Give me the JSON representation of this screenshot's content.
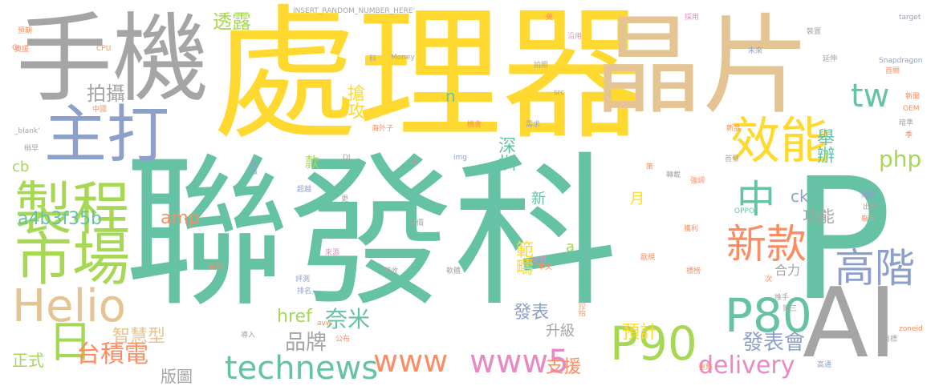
{
  "colors": {
    "yellow": "#ffd92f",
    "green": "#66c2a5",
    "gray": "#a5a5a5",
    "tan": "#e5c494",
    "blue": "#8da0cb",
    "lime": "#a6d854",
    "orange": "#fc8d62",
    "pink": "#e78ac3"
  },
  "words": [
    {
      "text": "聯發科",
      "color": "green"
    },
    {
      "text": "處理器",
      "color": "yellow"
    },
    {
      "text": "晶片",
      "color": "tan"
    },
    {
      "text": "手機",
      "color": "gray"
    },
    {
      "text": "P",
      "color": "green"
    },
    {
      "text": "AI",
      "color": "gray"
    },
    {
      "text": "主打",
      "color": "blue"
    },
    {
      "text": "製程",
      "color": "lime"
    },
    {
      "text": "市場",
      "color": "lime"
    },
    {
      "text": "效能",
      "color": "yellow"
    },
    {
      "text": "Helio",
      "color": "tan"
    },
    {
      "text": "P80",
      "color": "green"
    },
    {
      "text": "P90",
      "color": "lime"
    },
    {
      "text": "新款",
      "color": "orange"
    },
    {
      "text": "高階",
      "color": "blue"
    },
    {
      "text": "technews",
      "color": "green"
    },
    {
      "text": "www5",
      "color": "pink"
    },
    {
      "text": "www",
      "color": "orange"
    },
    {
      "text": "tw",
      "color": "green"
    },
    {
      "text": "中",
      "color": "green"
    },
    {
      "text": "日",
      "color": "lime"
    },
    {
      "text": "台積電",
      "color": "orange"
    },
    {
      "text": "delivery",
      "color": "pink"
    },
    {
      "text": "php",
      "color": "lime"
    },
    {
      "text": "發表會",
      "color": "blue"
    },
    {
      "text": "奈米",
      "color": "green"
    },
    {
      "text": "品牌",
      "color": "gray"
    },
    {
      "text": "amp",
      "color": "orange"
    },
    {
      "text": "a4b3f35b",
      "color": "green"
    },
    {
      "text": "拍攝",
      "color": "gray"
    },
    {
      "text": "透露",
      "color": "lime"
    },
    {
      "text": "搶攻",
      "color": "yellow"
    },
    {
      "text": "深圳",
      "color": "green"
    },
    {
      "text": "範疇",
      "color": "yellow"
    },
    {
      "text": "發表",
      "color": "blue"
    },
    {
      "text": "預計",
      "color": "yellow"
    },
    {
      "text": "升級",
      "color": "gray"
    },
    {
      "text": "支援",
      "color": "orange"
    },
    {
      "text": "智慧型",
      "color": "tan"
    },
    {
      "text": "正式",
      "color": "lime"
    },
    {
      "text": "版圖",
      "color": "gray"
    },
    {
      "text": "href",
      "color": "lime"
    },
    {
      "text": "舉辦",
      "color": "green"
    },
    {
      "text": "功能",
      "color": "gray"
    },
    {
      "text": "合力",
      "color": "gray"
    },
    {
      "text": "ck",
      "color": "blue"
    },
    {
      "text": "cb",
      "color": "lime"
    },
    {
      "text": "n",
      "color": "green"
    },
    {
      "text": "款",
      "color": "lime"
    },
    {
      "text": "新",
      "color": "green"
    },
    {
      "text": "月",
      "color": "yellow"
    },
    {
      "text": "a",
      "color": "lime"
    },
    {
      "text": "INSERT_RANDOM_NUMBER_HERE'",
      "color": "gray"
    },
    {
      "text": "Money",
      "color": "gray"
    },
    {
      "text": "Snapdragon",
      "color": "blue"
    },
    {
      "text": "target",
      "color": "blue"
    },
    {
      "text": "OPPO",
      "color": "green"
    },
    {
      "text": "GPU",
      "color": "yellow"
    },
    {
      "text": "CPU",
      "color": "orange"
    },
    {
      "text": "OEM",
      "color": "orange"
    },
    {
      "text": "zoneid",
      "color": "orange"
    },
    {
      "text": "src",
      "color": "blue"
    },
    {
      "text": "img",
      "color": "blue"
    },
    {
      "text": "_blank'",
      "color": "gray"
    },
    {
      "text": "DJ",
      "color": "gray"
    },
    {
      "text": "avw",
      "color": "orange"
    },
    {
      "text": "預期",
      "color": "orange"
    },
    {
      "text": "奧援",
      "color": "orange"
    },
    {
      "text": "G",
      "color": "orange"
    },
    {
      "text": "中國",
      "color": "orange"
    },
    {
      "text": "稍早",
      "color": "gray"
    },
    {
      "text": "財報",
      "color": "blue"
    },
    {
      "text": "超越",
      "color": "blue"
    },
    {
      "text": "更",
      "color": "gray"
    },
    {
      "text": "中價",
      "color": "gray"
    },
    {
      "text": "營收",
      "color": "gray"
    },
    {
      "text": "評測",
      "color": "blue"
    },
    {
      "text": "排名",
      "color": "blue"
    },
    {
      "text": "導入",
      "color": "gray"
    },
    {
      "text": "公布",
      "color": "orange"
    },
    {
      "text": "系列",
      "color": "orange"
    },
    {
      "text": "來源",
      "color": "pink"
    },
    {
      "text": "軟體",
      "color": "gray"
    },
    {
      "text": "本文",
      "color": "orange"
    },
    {
      "text": "智慧",
      "color": "pink"
    },
    {
      "text": "拉抬",
      "color": "orange"
    },
    {
      "text": "標榜",
      "color": "orange"
    },
    {
      "text": "強調",
      "color": "orange"
    },
    {
      "text": "轉載",
      "color": "gray"
    },
    {
      "text": "獲利",
      "color": "orange"
    },
    {
      "text": "首發",
      "color": "gray"
    },
    {
      "text": "採用",
      "color": "pink"
    },
    {
      "text": "沿用",
      "color": "pink"
    },
    {
      "text": "未來",
      "color": "blue"
    },
    {
      "text": "延伸",
      "color": "gray"
    },
    {
      "text": "首關",
      "color": "orange"
    },
    {
      "text": "新聞",
      "color": "orange"
    },
    {
      "text": "新品",
      "color": "orange"
    },
    {
      "text": "暗準",
      "color": "gray"
    },
    {
      "text": "季",
      "color": "orange"
    },
    {
      "text": "閱讀",
      "color": "blue"
    },
    {
      "text": "出貨",
      "color": "gray"
    },
    {
      "text": "廠商",
      "color": "orange"
    },
    {
      "text": "推手",
      "color": "gray"
    },
    {
      "text": "第三",
      "color": "gray"
    },
    {
      "text": "目標",
      "color": "gray"
    },
    {
      "text": "高通",
      "color": "blue"
    },
    {
      "text": "重點",
      "color": "orange"
    },
    {
      "text": "裝置",
      "color": "gray"
    },
    {
      "text": "美",
      "color": "orange"
    },
    {
      "text": "科",
      "color": "gray"
    },
    {
      "text": "拍照",
      "color": "gray"
    },
    {
      "text": "需求",
      "color": "gray"
    },
    {
      "text": "機會",
      "color": "orange"
    },
    {
      "text": "海外子",
      "color": "orange"
    },
    {
      "text": "華",
      "color": "gray"
    },
    {
      "text": "策",
      "color": "orange"
    },
    {
      "text": "歐規",
      "color": "orange"
    },
    {
      "text": "次",
      "color": "orange"
    }
  ]
}
